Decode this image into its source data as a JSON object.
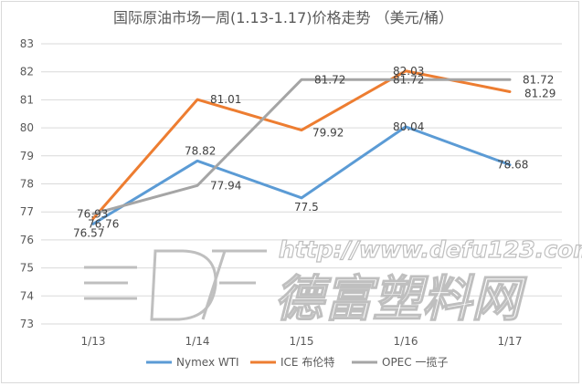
{
  "chart_data": {
    "type": "line",
    "title": "国际原油市场一周(1.13-1.17)价格走势 （美元/桶）",
    "categories": [
      "1/13",
      "1/14",
      "1/15",
      "1/16",
      "1/17"
    ],
    "ylim": [
      73,
      83
    ],
    "yticks": [
      "73",
      "74",
      "75",
      "76",
      "77",
      "78",
      "79",
      "80",
      "81",
      "82",
      "83"
    ],
    "grid": true,
    "legend_position": "bottom",
    "series": [
      {
        "name": "Nymex WTI",
        "color": "#5b9bd5",
        "values": [
          76.57,
          78.82,
          77.5,
          80.04,
          78.68
        ],
        "labels": [
          "76.57",
          "78.82",
          "77.5",
          "80.04",
          "78.68"
        ]
      },
      {
        "name": "ICE 布伦特",
        "color": "#ed7d31",
        "values": [
          76.76,
          81.01,
          79.92,
          82.03,
          81.29
        ],
        "labels": [
          "76.76",
          "81.01",
          "79.92",
          "82.03",
          "81.29"
        ]
      },
      {
        "name": "OPEC 一揽子",
        "color": "#a5a5a5",
        "values": [
          76.93,
          77.94,
          81.72,
          81.72,
          81.72
        ],
        "labels": [
          "76.93",
          "77.94",
          "81.72",
          "81.72",
          "81.72"
        ]
      }
    ]
  },
  "watermark": {
    "url": "http://www.defu123.com",
    "brand": "德富塑料网"
  }
}
